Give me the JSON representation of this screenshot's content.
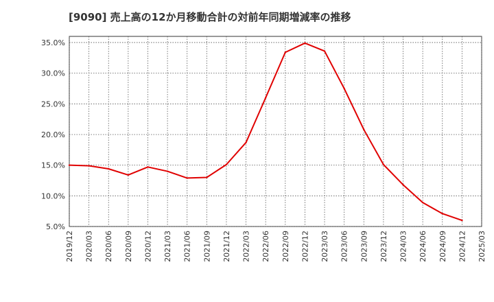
{
  "chart_data": {
    "type": "line",
    "title": "[9090]  売上高の12か月移動合計の対前年同期増減率の推移",
    "xlabel": "",
    "ylabel": "",
    "ylim": [
      5.0,
      36.0
    ],
    "y_ticks": [
      "5.0%",
      "10.0%",
      "15.0%",
      "20.0%",
      "25.0%",
      "30.0%",
      "35.0%"
    ],
    "y_tick_values": [
      5,
      10,
      15,
      20,
      25,
      30,
      35
    ],
    "categories": [
      "2019/12",
      "2020/03",
      "2020/06",
      "2020/09",
      "2020/12",
      "2021/03",
      "2021/06",
      "2021/09",
      "2021/12",
      "2022/03",
      "2022/06",
      "2022/09",
      "2022/12",
      "2023/03",
      "2023/06",
      "2023/09",
      "2023/12",
      "2024/03",
      "2024/06",
      "2024/09",
      "2024/12",
      "2025/03"
    ],
    "series": [
      {
        "name": "対前年同期増減率",
        "color": "#e00000",
        "values": [
          15.0,
          14.9,
          14.4,
          13.4,
          14.7,
          14.0,
          12.9,
          13.0,
          15.1,
          18.7,
          26.0,
          33.4,
          34.9,
          33.6,
          27.5,
          20.8,
          15.1,
          11.8,
          8.9,
          7.1,
          6.0,
          null
        ]
      }
    ],
    "grid": true,
    "legend": "none"
  }
}
